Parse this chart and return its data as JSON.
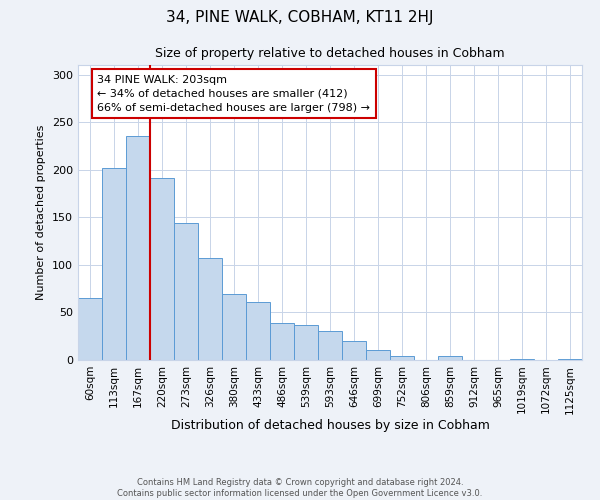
{
  "title": "34, PINE WALK, COBHAM, KT11 2HJ",
  "subtitle": "Size of property relative to detached houses in Cobham",
  "xlabel": "Distribution of detached houses by size in Cobham",
  "ylabel": "Number of detached properties",
  "bin_labels": [
    "60sqm",
    "113sqm",
    "167sqm",
    "220sqm",
    "273sqm",
    "326sqm",
    "380sqm",
    "433sqm",
    "486sqm",
    "539sqm",
    "593sqm",
    "646sqm",
    "699sqm",
    "752sqm",
    "806sqm",
    "859sqm",
    "912sqm",
    "965sqm",
    "1019sqm",
    "1072sqm",
    "1125sqm"
  ],
  "bar_values": [
    65,
    202,
    235,
    191,
    144,
    107,
    69,
    61,
    39,
    37,
    30,
    20,
    10,
    4,
    0,
    4,
    0,
    0,
    1,
    0,
    1
  ],
  "bar_color": "#c5d8ed",
  "bar_edge_color": "#5b9bd5",
  "vline_color": "#cc0000",
  "annotation_text": "34 PINE WALK: 203sqm\n← 34% of detached houses are smaller (412)\n66% of semi-detached houses are larger (798) →",
  "annotation_box_color": "#ffffff",
  "annotation_box_edge": "#cc0000",
  "ylim": [
    0,
    310
  ],
  "footer1": "Contains HM Land Registry data © Crown copyright and database right 2024.",
  "footer2": "Contains public sector information licensed under the Open Government Licence v3.0.",
  "bg_color": "#eef2f8",
  "plot_bg_color": "#ffffff",
  "grid_color": "#c8d4e8"
}
